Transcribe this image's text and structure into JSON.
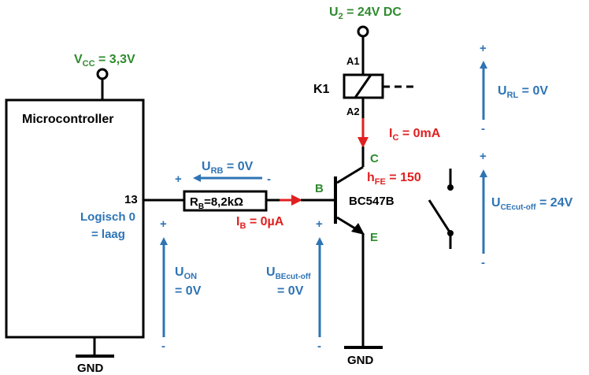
{
  "supply": {
    "u2_main": "U",
    "u2_sub": "2",
    "u2_rest": " = 24V DC",
    "vcc_main": "V",
    "vcc_sub": "CC",
    "vcc_rest": " = 3,3V"
  },
  "microcontroller": {
    "title": "Microcontroller",
    "pin": "13",
    "state_line1": "Logisch 0",
    "state_line2": "= laag",
    "gnd": "GND"
  },
  "resistor": {
    "label_main": "R",
    "label_sub": "B",
    "label_rest": "=8,2kΩ",
    "u_main": "U",
    "u_sub": "RB",
    "u_rest": " = 0V",
    "plus": "+",
    "minus": "-"
  },
  "base_current": {
    "main": "I",
    "sub": "B",
    "rest": " = 0µA"
  },
  "transistor": {
    "base": "B",
    "collector": "C",
    "emitter": "E",
    "type": "BC547B",
    "hfe_main": "h",
    "hfe_sub": "FE",
    "hfe_rest": " = 150",
    "gnd": "GND"
  },
  "collector_current": {
    "main": "I",
    "sub": "C",
    "rest": " = 0mA"
  },
  "relay": {
    "name": "K1",
    "a1": "A1",
    "a2": "A2"
  },
  "voltages": {
    "u_on_main": "U",
    "u_on_sub": "ON",
    "u_on_value": "= 0V",
    "u_be_main": "U",
    "u_be_sub": "BEcut-off",
    "u_be_value": "= 0V",
    "u_rl_main": "U",
    "u_rl_sub": "RL",
    "u_rl_rest": " = 0V",
    "u_ce_main": "U",
    "u_ce_sub": "CEcut-off",
    "u_ce_rest": " = 24V",
    "plus": "+",
    "minus": "-"
  },
  "colors": {
    "green": "#2e8b2e",
    "blue": "#2e74b5",
    "red": "#e02020",
    "black": "#000000"
  }
}
